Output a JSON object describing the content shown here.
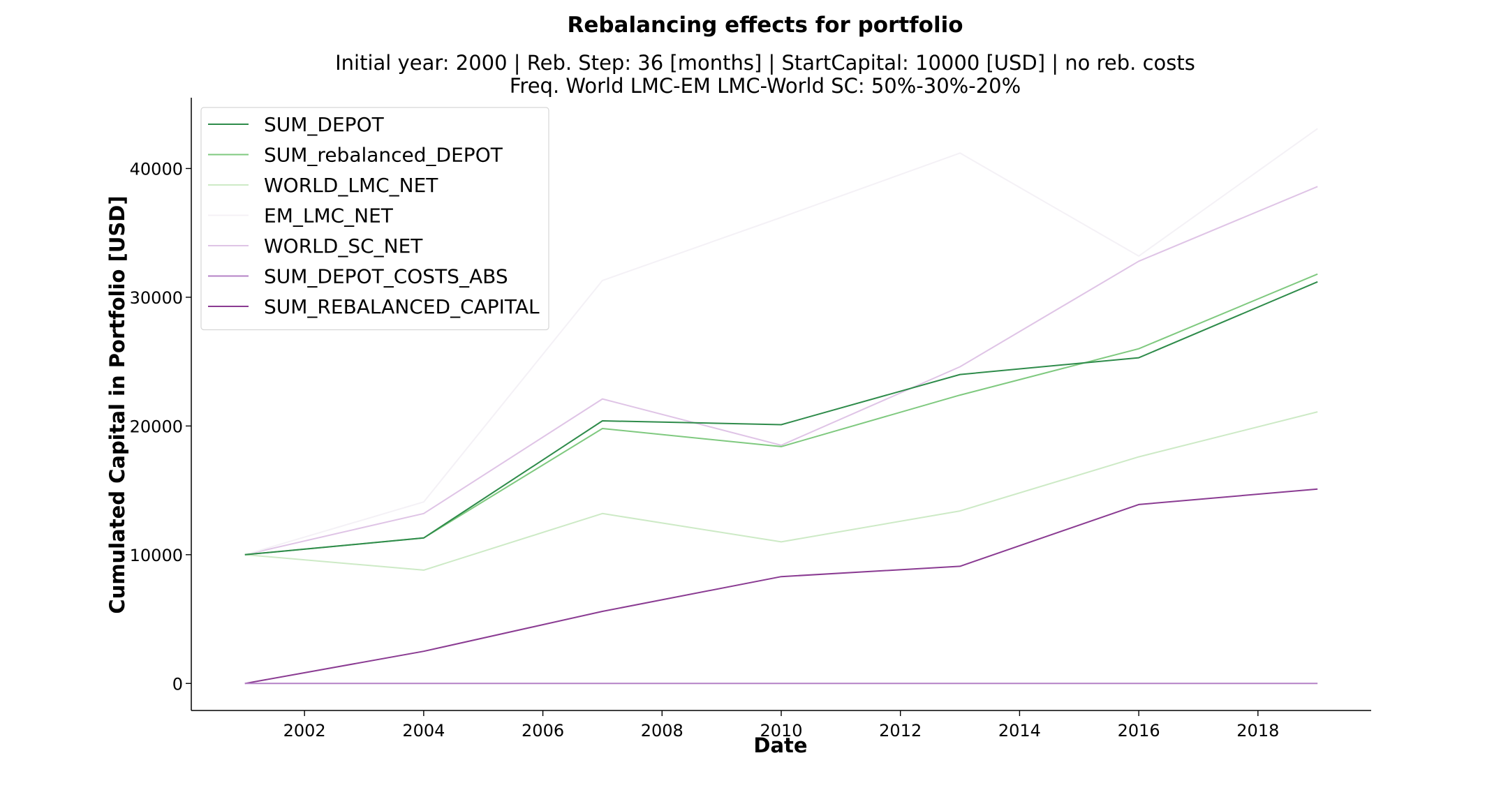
{
  "chart_data": {
    "type": "line",
    "title": "Rebalancing effects for portfolio",
    "subtitle_line1": "Initial year: 2000 | Reb. Step: 36 [months] | StartCapital: 10000 [USD] | no reb. costs",
    "subtitle_line2": "Freq. World LMC-EM LMC-World SC: 50%-30%-20%",
    "xlabel": "Date",
    "ylabel": "Cumulated Capital in Portfolio [USD]",
    "x": [
      2001,
      2004,
      2007,
      2010,
      2013,
      2016,
      2019
    ],
    "xlim": [
      2000.1,
      2019.9
    ],
    "ylim": [
      -2100,
      45500
    ],
    "xticks": [
      2002,
      2004,
      2006,
      2008,
      2010,
      2012,
      2014,
      2016,
      2018
    ],
    "yticks": [
      0,
      10000,
      20000,
      30000,
      40000
    ],
    "grid": false,
    "legend_position": "top-left",
    "series": [
      {
        "name": "SUM_DEPOT",
        "color": "#2e8b4a",
        "values": [
          10000,
          11300,
          20400,
          20100,
          24000,
          25300,
          31200
        ]
      },
      {
        "name": "SUM_rebalanced_DEPOT",
        "color": "#7fc97f",
        "values": [
          10000,
          11300,
          19800,
          18400,
          22400,
          26000,
          31800
        ]
      },
      {
        "name": "WORLD_LMC_NET",
        "color": "#cdeac6",
        "values": [
          10000,
          8800,
          13200,
          11000,
          13400,
          17600,
          21100
        ]
      },
      {
        "name": "EM_LMC_NET",
        "color": "#f4f1f6",
        "values": [
          10000,
          14100,
          31300,
          36200,
          41200,
          33200,
          43100
        ]
      },
      {
        "name": "WORLD_SC_NET",
        "color": "#dfc4e6",
        "values": [
          10000,
          13200,
          22100,
          18500,
          24600,
          32800,
          38600
        ]
      },
      {
        "name": "SUM_DEPOT_COSTS_ABS",
        "color": "#b481c6",
        "values": [
          0,
          0,
          0,
          0,
          0,
          0,
          0
        ]
      },
      {
        "name": "SUM_REBALANCED_CAPITAL",
        "color": "#8a3b92",
        "values": [
          0,
          2500,
          5600,
          8300,
          9100,
          13900,
          15100
        ]
      }
    ]
  }
}
